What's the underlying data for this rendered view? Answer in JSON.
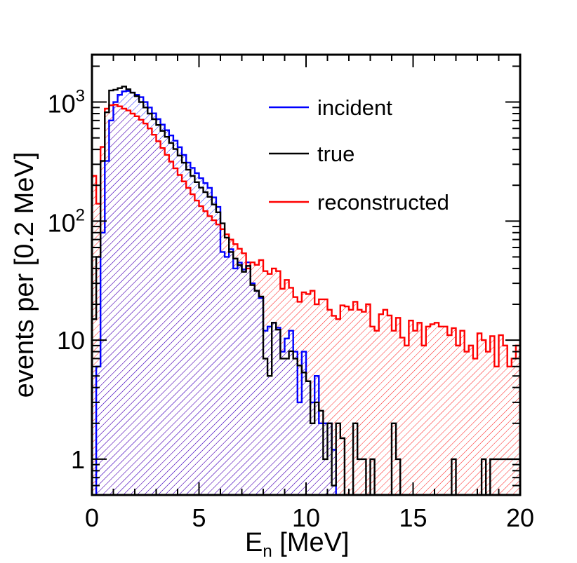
{
  "chart_data": {
    "type": "histogram",
    "xlabel_main": "E",
    "xlabel_sub": "n",
    "xlabel_unit": "[MeV]",
    "ylabel": "events per [0.2 MeV]",
    "xlim": [
      0,
      20
    ],
    "ylim": [
      0.5,
      2500
    ],
    "yscale": "log",
    "bin_width": 0.2,
    "x_ticks": [
      {
        "value": 0,
        "label": "0"
      },
      {
        "value": 5,
        "label": "5"
      },
      {
        "value": 10,
        "label": "10"
      },
      {
        "value": 15,
        "label": "15"
      },
      {
        "value": 20,
        "label": "20"
      }
    ],
    "y_ticks": [
      {
        "value": 1,
        "label": "1"
      },
      {
        "value": 10,
        "label": "10"
      },
      {
        "value": 100,
        "base": "10",
        "exp": "2"
      },
      {
        "value": 1000,
        "base": "10",
        "exp": "3"
      }
    ],
    "legend": [
      {
        "label": "incident",
        "color": "#0000ff"
      },
      {
        "label": "true",
        "color": "#000000"
      },
      {
        "label": "reconstructed",
        "color": "#ff0000"
      }
    ],
    "series": [
      {
        "name": "incident",
        "color": "#0000ff",
        "hatch": true,
        "knots": [
          [
            0,
            0
          ],
          [
            0.1,
            0
          ],
          [
            0.3,
            6
          ],
          [
            0.5,
            80
          ],
          [
            0.7,
            320
          ],
          [
            0.9,
            700
          ],
          [
            1.1,
            1000
          ],
          [
            1.3,
            1150
          ],
          [
            1.5,
            1230
          ],
          [
            1.7,
            1240
          ],
          [
            1.9,
            1200
          ],
          [
            2.1,
            1150
          ],
          [
            2.3,
            1100
          ],
          [
            2.5,
            1000
          ],
          [
            2.7,
            900
          ],
          [
            3,
            760
          ],
          [
            3.5,
            580
          ],
          [
            4,
            450
          ],
          [
            4.5,
            310
          ],
          [
            5,
            240
          ],
          [
            5.5,
            190
          ],
          [
            6,
            120
          ],
          [
            6.5,
            58
          ],
          [
            7,
            42
          ],
          [
            7.5,
            30
          ],
          [
            8,
            21
          ],
          [
            8.5,
            14
          ],
          [
            9,
            11
          ],
          [
            9.5,
            8
          ],
          [
            10,
            5
          ],
          [
            10.5,
            3
          ],
          [
            11,
            1.7
          ],
          [
            11.3,
            1.2
          ],
          [
            11.5,
            0
          ]
        ],
        "overrides": [
          [
            6.1,
            55
          ],
          [
            6.3,
            50
          ],
          [
            6.7,
            40
          ],
          [
            7.3,
            45
          ],
          [
            8.1,
            12
          ],
          [
            8.3,
            13
          ],
          [
            8.9,
            8
          ],
          [
            9.3,
            12
          ],
          [
            9.7,
            3
          ],
          [
            9.9,
            8
          ],
          [
            10.3,
            3
          ],
          [
            10.5,
            5
          ],
          [
            10.7,
            2
          ],
          [
            10.9,
            2
          ],
          [
            11.1,
            2
          ]
        ]
      },
      {
        "name": "true",
        "color": "#000000",
        "hatch": false,
        "knots": [
          [
            0,
            15
          ],
          [
            0.1,
            15
          ],
          [
            0.3,
            50
          ],
          [
            0.5,
            320
          ],
          [
            0.7,
            820
          ],
          [
            0.9,
            1250
          ],
          [
            1.1,
            1270
          ],
          [
            1.3,
            1310
          ],
          [
            1.5,
            1350
          ],
          [
            1.7,
            1280
          ],
          [
            1.9,
            1200
          ],
          [
            2.1,
            1120
          ],
          [
            2.3,
            1000
          ],
          [
            2.5,
            900
          ],
          [
            2.7,
            800
          ],
          [
            3,
            680
          ],
          [
            3.5,
            510
          ],
          [
            4,
            380
          ],
          [
            4.5,
            270
          ],
          [
            5,
            200
          ],
          [
            5.5,
            160
          ],
          [
            6,
            110
          ],
          [
            6.5,
            55
          ],
          [
            7,
            40
          ],
          [
            7.5,
            29
          ],
          [
            8,
            22
          ],
          [
            8.5,
            14
          ],
          [
            9,
            10
          ],
          [
            9.5,
            7
          ],
          [
            10,
            5
          ],
          [
            10.5,
            3
          ],
          [
            11,
            2
          ],
          [
            11.5,
            1.5
          ],
          [
            12,
            0
          ]
        ],
        "overrides": [
          [
            7.3,
            42
          ],
          [
            8.1,
            7
          ],
          [
            8.3,
            5
          ],
          [
            8.9,
            7
          ],
          [
            9.1,
            7
          ],
          [
            10.3,
            2
          ],
          [
            10.9,
            1
          ],
          [
            11.1,
            2
          ],
          [
            11.3,
            0.6
          ],
          [
            11.5,
            2
          ],
          [
            12.3,
            2
          ],
          [
            12.5,
            1
          ],
          [
            12.7,
            1
          ],
          [
            13.1,
            1
          ],
          [
            13.9,
            0
          ],
          [
            14.1,
            2
          ],
          [
            14.3,
            1
          ],
          [
            16.9,
            1
          ],
          [
            18.3,
            1
          ],
          [
            18.7,
            1
          ],
          [
            18.9,
            1
          ],
          [
            19.1,
            1
          ],
          [
            19.3,
            1
          ],
          [
            19.5,
            1
          ],
          [
            19.7,
            1
          ],
          [
            19.9,
            1
          ]
        ]
      },
      {
        "name": "reconstructed",
        "color": "#ff0000",
        "hatch": true,
        "knots": [
          [
            0,
            240
          ],
          [
            0.1,
            240
          ],
          [
            0.3,
            150
          ],
          [
            0.5,
            420
          ],
          [
            0.7,
            880
          ],
          [
            0.9,
            940
          ],
          [
            1.1,
            950
          ],
          [
            1.3,
            920
          ],
          [
            1.5,
            880
          ],
          [
            1.7,
            850
          ],
          [
            1.9,
            800
          ],
          [
            2.1,
            760
          ],
          [
            2.3,
            710
          ],
          [
            2.5,
            660
          ],
          [
            2.7,
            600
          ],
          [
            3,
            500
          ],
          [
            3.5,
            360
          ],
          [
            4,
            260
          ],
          [
            4.5,
            190
          ],
          [
            5,
            140
          ],
          [
            5.5,
            110
          ],
          [
            6,
            90
          ],
          [
            6.5,
            70
          ],
          [
            7,
            56
          ],
          [
            7.5,
            45
          ],
          [
            8,
            40
          ],
          [
            8.5,
            32
          ],
          [
            9,
            30
          ],
          [
            9.5,
            26
          ],
          [
            10,
            25
          ],
          [
            10.5,
            22
          ],
          [
            11,
            22
          ],
          [
            11.5,
            20
          ],
          [
            12,
            19
          ],
          [
            12.5,
            17.5
          ],
          [
            13,
            17
          ],
          [
            13.5,
            16.5
          ],
          [
            14,
            16
          ],
          [
            14.5,
            15
          ],
          [
            15,
            14.5
          ],
          [
            15.5,
            14
          ],
          [
            16,
            13.5
          ],
          [
            16.5,
            13
          ],
          [
            17,
            12.5
          ],
          [
            17.5,
            12
          ],
          [
            18,
            11.5
          ],
          [
            18.5,
            11
          ],
          [
            19,
            10.5
          ],
          [
            19.5,
            10
          ],
          [
            20,
            10
          ]
        ],
        "overrides": [
          [
            0.1,
            240
          ],
          [
            0.3,
            140
          ],
          [
            0.5,
            420
          ],
          [
            7.3,
            40
          ],
          [
            7.9,
            47
          ],
          [
            8.1,
            38
          ],
          [
            8.3,
            36
          ],
          [
            8.5,
            40
          ],
          [
            8.7,
            38
          ],
          [
            8.9,
            27
          ],
          [
            9.1,
            32
          ],
          [
            9.5,
            23
          ],
          [
            9.7,
            21
          ],
          [
            10.3,
            26
          ],
          [
            10.5,
            20
          ],
          [
            11,
            18
          ],
          [
            11.3,
            16
          ],
          [
            11.5,
            15
          ],
          [
            12,
            18
          ],
          [
            12.3,
            21
          ],
          [
            12.5,
            18
          ],
          [
            12.9,
            20
          ],
          [
            13,
            13
          ],
          [
            13.3,
            12
          ],
          [
            13.7,
            18
          ],
          [
            14,
            12
          ],
          [
            14.5,
            10.5
          ],
          [
            14.7,
            9
          ],
          [
            15,
            12
          ],
          [
            15.3,
            14
          ],
          [
            15.5,
            9
          ],
          [
            15.7,
            13
          ],
          [
            16,
            14
          ],
          [
            16.3,
            13
          ],
          [
            16.7,
            11
          ],
          [
            17,
            9
          ],
          [
            17.3,
            12
          ],
          [
            17.5,
            8
          ],
          [
            17.7,
            9
          ],
          [
            17.9,
            7
          ],
          [
            18.3,
            10
          ],
          [
            18.5,
            8
          ],
          [
            18.9,
            6
          ],
          [
            19.1,
            11
          ],
          [
            19.3,
            9
          ],
          [
            19.5,
            6
          ],
          [
            19.7,
            7
          ],
          [
            19.9,
            9
          ]
        ]
      }
    ]
  }
}
